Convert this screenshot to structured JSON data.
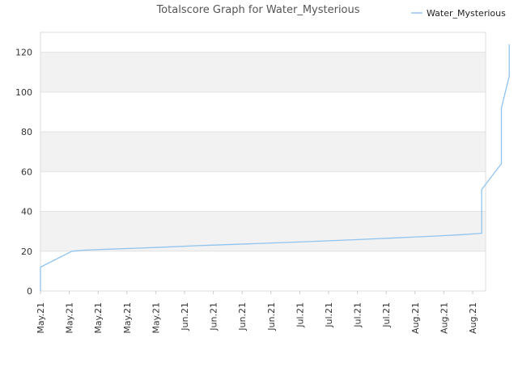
{
  "chart_data": {
    "type": "line",
    "title": "Totalscore Graph for Water_Mysterious",
    "legend_position": "top-right",
    "xlabel": "",
    "ylabel": "",
    "ylim": [
      0,
      130
    ],
    "y_ticks": [
      0,
      20,
      40,
      60,
      80,
      100,
      120
    ],
    "grid": true,
    "x_tick_labels": [
      "May.21",
      "May.21",
      "May.21",
      "May.21",
      "May.21",
      "Jun.21",
      "Jun.21",
      "Jun.21",
      "Jun.21",
      "Jul.21",
      "Jul.21",
      "Jul.21",
      "Jul.21",
      "Aug.21",
      "Aug.21",
      "Aug.21"
    ],
    "x_range": [
      "2021-05-01",
      "2021-08-22"
    ],
    "series": [
      {
        "name": "Water_Mysterious",
        "color": "#90c4f0",
        "points": [
          [
            "2021-05-01",
            0
          ],
          [
            "2021-05-01",
            12
          ],
          [
            "2021-05-09",
            20
          ],
          [
            "2021-05-12",
            20.5
          ],
          [
            "2021-05-18",
            21
          ],
          [
            "2021-05-25",
            21.5
          ],
          [
            "2021-06-01",
            22
          ],
          [
            "2021-06-10",
            22.8
          ],
          [
            "2021-06-20",
            23.5
          ],
          [
            "2021-06-30",
            24.2
          ],
          [
            "2021-07-10",
            25
          ],
          [
            "2021-07-20",
            25.8
          ],
          [
            "2021-07-30",
            26.7
          ],
          [
            "2021-08-09",
            27.6
          ],
          [
            "2021-08-16",
            28.3
          ],
          [
            "2021-08-21",
            29
          ],
          [
            "2021-08-21",
            51
          ],
          [
            "2021-08-26",
            64
          ],
          [
            "2021-08-26",
            92
          ],
          [
            "2021-08-28",
            108
          ],
          [
            "2021-08-28",
            124
          ]
        ]
      }
    ]
  }
}
